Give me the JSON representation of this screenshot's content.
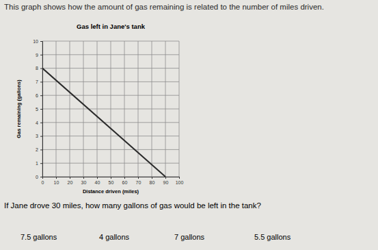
{
  "header": "This graph shows how the amount of gas remaining is related to the number of miles driven.",
  "chart_data": {
    "type": "line",
    "title": "Gas left in Jane's tank",
    "xlabel": "Distance driven (miles)",
    "ylabel": "Gas remaining (gallons)",
    "x": [
      0,
      90
    ],
    "values": [
      8,
      0
    ],
    "color": "#2a2a2a",
    "xlim": [
      0,
      100
    ],
    "xticks": [
      0,
      10,
      20,
      30,
      40,
      50,
      60,
      70,
      80,
      90,
      100
    ],
    "ylim": [
      0,
      10
    ],
    "yticks": [
      0,
      1,
      2,
      3,
      4,
      5,
      6,
      7,
      8,
      9,
      10
    ],
    "grid": true
  },
  "question": "If Jane drove 30 miles, how many gallons of gas would be left in the tank?",
  "options": [
    "7.5 gallons",
    "4 gallons",
    "7 gallons",
    "5.5 gallons"
  ]
}
